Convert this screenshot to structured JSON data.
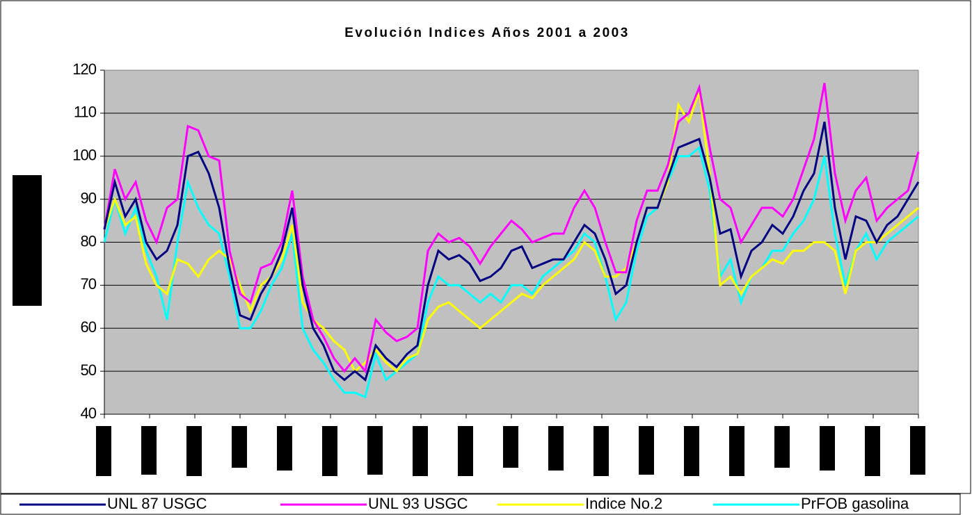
{
  "chart_data": {
    "type": "line",
    "title": "Evolución Indices Años 2001 a 2003",
    "ylim": [
      40,
      120
    ],
    "yticks": [
      40,
      50,
      60,
      70,
      80,
      90,
      100,
      110,
      120
    ],
    "grid": true,
    "series": [
      {
        "name": "UNL 87 USGC",
        "color": "#000080",
        "values": [
          83,
          94,
          86,
          90,
          80,
          76,
          78,
          84,
          100,
          101,
          96,
          88,
          74,
          63,
          62,
          68,
          72,
          78,
          88,
          70,
          60,
          56,
          50,
          48,
          50,
          48,
          56,
          53,
          51,
          54,
          56,
          70,
          78,
          76,
          77,
          75,
          71,
          72,
          74,
          78,
          79,
          74,
          75,
          76,
          76,
          80,
          84,
          82,
          76,
          68,
          70,
          80,
          88,
          88,
          95,
          102,
          103,
          104,
          95,
          82,
          83,
          72,
          78,
          80,
          84,
          82,
          86,
          92,
          96,
          108,
          88,
          76,
          86,
          85,
          80,
          84,
          86,
          90,
          94
        ]
      },
      {
        "name": "UNL 93 USGC",
        "color": "#ff00ff",
        "values": [
          83,
          97,
          90,
          94,
          85,
          80,
          88,
          90,
          107,
          106,
          100,
          99,
          78,
          68,
          66,
          74,
          75,
          80,
          92,
          72,
          62,
          58,
          53,
          50,
          53,
          50,
          62,
          59,
          57,
          58,
          60,
          78,
          82,
          80,
          81,
          79,
          75,
          79,
          82,
          85,
          83,
          80,
          81,
          82,
          82,
          88,
          92,
          88,
          80,
          73,
          73,
          85,
          92,
          92,
          98,
          108,
          110,
          116,
          102,
          90,
          88,
          80,
          84,
          88,
          88,
          86,
          90,
          97,
          104,
          117,
          96,
          85,
          92,
          95,
          85,
          88,
          90,
          92,
          101
        ]
      },
      {
        "name": "Indice No.2",
        "color": "#ffff00",
        "values": [
          83,
          90,
          84,
          86,
          75,
          70,
          68,
          76,
          75,
          72,
          76,
          78,
          76,
          70,
          64,
          70,
          72,
          76,
          84,
          66,
          62,
          60,
          57,
          55,
          50,
          52,
          55,
          52,
          50,
          53,
          54,
          62,
          65,
          66,
          64,
          62,
          60,
          62,
          64,
          66,
          68,
          67,
          70,
          72,
          74,
          76,
          80,
          78,
          72,
          72,
          74,
          80,
          88,
          88,
          94,
          112,
          108,
          115,
          96,
          70,
          72,
          68,
          72,
          74,
          76,
          75,
          78,
          78,
          80,
          80,
          78,
          68,
          78,
          80,
          80,
          82,
          84,
          86,
          88
        ]
      },
      {
        "name": "PrFOB gasolina",
        "color": "#00ffff",
        "values": [
          80,
          90,
          82,
          88,
          78,
          72,
          62,
          80,
          94,
          88,
          84,
          82,
          72,
          60,
          60,
          64,
          70,
          74,
          82,
          60,
          55,
          52,
          48,
          45,
          45,
          44,
          54,
          48,
          50,
          52,
          54,
          66,
          72,
          70,
          70,
          68,
          66,
          68,
          66,
          70,
          70,
          68,
          72,
          74,
          76,
          78,
          82,
          80,
          72,
          62,
          66,
          78,
          86,
          88,
          94,
          100,
          100,
          102,
          92,
          72,
          76,
          66,
          72,
          74,
          78,
          78,
          82,
          85,
          90,
          100,
          82,
          70,
          78,
          82,
          76,
          80,
          82,
          84,
          86
        ]
      }
    ]
  }
}
